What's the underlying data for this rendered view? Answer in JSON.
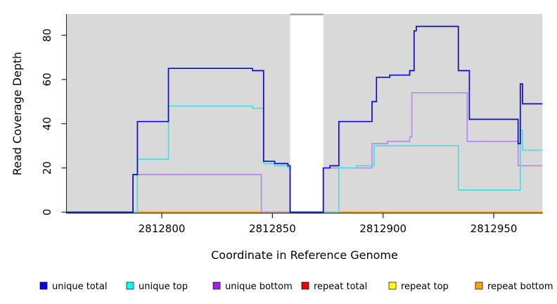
{
  "chart_data": {
    "type": "line",
    "subtype": "step-coverage-plot",
    "title": "",
    "xlabel": "Coordinate in Reference Genome",
    "ylabel": "Read Coverage Depth",
    "xlim": [
      2812757,
      2812972
    ],
    "ylim": [
      0,
      89
    ],
    "x_ticks": [
      2812800,
      2812850,
      2812900,
      2812950
    ],
    "y_ticks": [
      0,
      20,
      40,
      60,
      80
    ],
    "grid": false,
    "plot_bg": "#d9d9d9",
    "masked_region": {
      "start": 2812858,
      "end": 2812873
    },
    "series": [
      {
        "name": "repeat total",
        "legend_color": "#EE0000",
        "line_color": "#E03030",
        "points": [
          [
            2812757,
            0
          ],
          [
            2812972,
            0
          ]
        ]
      },
      {
        "name": "repeat top",
        "legend_color": "#FFFF00",
        "line_color": "#F0F000",
        "points": [
          [
            2812757,
            0
          ],
          [
            2812972,
            0
          ]
        ]
      },
      {
        "name": "repeat bottom",
        "legend_color": "#FFA500",
        "line_color": "#FF9100",
        "points": [
          [
            2812757,
            0
          ],
          [
            2812972,
            0
          ]
        ]
      },
      {
        "name": "unique bottom",
        "legend_color": "#A020F0",
        "line_color": "#B78BE8",
        "points": [
          [
            2812757,
            0
          ],
          [
            2812787,
            17
          ],
          [
            2812845,
            0
          ],
          [
            2812873,
            20
          ],
          [
            2812895,
            31
          ],
          [
            2812902,
            32
          ],
          [
            2812912,
            34
          ],
          [
            2812913,
            54
          ],
          [
            2812938,
            32
          ],
          [
            2812961,
            21
          ],
          [
            2812972,
            21
          ]
        ]
      },
      {
        "name": "unique top",
        "legend_color": "#00FFFF",
        "line_color": "#4ADCE4",
        "points": [
          [
            2812757,
            0
          ],
          [
            2812789,
            24
          ],
          [
            2812803,
            48
          ],
          [
            2812841,
            47
          ],
          [
            2812846,
            22
          ],
          [
            2812851,
            21
          ],
          [
            2812857,
            20
          ],
          [
            2812858,
            0
          ],
          [
            2812880,
            20
          ],
          [
            2812888,
            21
          ],
          [
            2812896,
            30
          ],
          [
            2812934,
            10
          ],
          [
            2812962,
            37
          ],
          [
            2812963,
            28
          ],
          [
            2812972,
            28
          ]
        ]
      },
      {
        "name": "unique total",
        "legend_color": "#0000FF",
        "line_color": "#0A0ADB",
        "points": [
          [
            2812757,
            0
          ],
          [
            2812787,
            17
          ],
          [
            2812789,
            41
          ],
          [
            2812803,
            65
          ],
          [
            2812841,
            64
          ],
          [
            2812846,
            23
          ],
          [
            2812851,
            22
          ],
          [
            2812857,
            21
          ],
          [
            2812858,
            0
          ],
          [
            2812873,
            20
          ],
          [
            2812876,
            21
          ],
          [
            2812880,
            41
          ],
          [
            2812895,
            50
          ],
          [
            2812897,
            61
          ],
          [
            2812903,
            62
          ],
          [
            2812912,
            64
          ],
          [
            2812914,
            82
          ],
          [
            2812915,
            84
          ],
          [
            2812934,
            64
          ],
          [
            2812939,
            42
          ],
          [
            2812961,
            31
          ],
          [
            2812962,
            58
          ],
          [
            2812963,
            49
          ],
          [
            2812972,
            49
          ]
        ]
      }
    ],
    "legend": [
      {
        "label": "unique total",
        "color": "#0000FF"
      },
      {
        "label": "unique top",
        "color": "#00FFFF"
      },
      {
        "label": "unique bottom",
        "color": "#A020F0"
      },
      {
        "label": "repeat total",
        "color": "#EE0000"
      },
      {
        "label": "repeat top",
        "color": "#FFFF00"
      },
      {
        "label": "repeat bottom",
        "color": "#FFA500"
      }
    ],
    "legend_position": "bottom"
  }
}
